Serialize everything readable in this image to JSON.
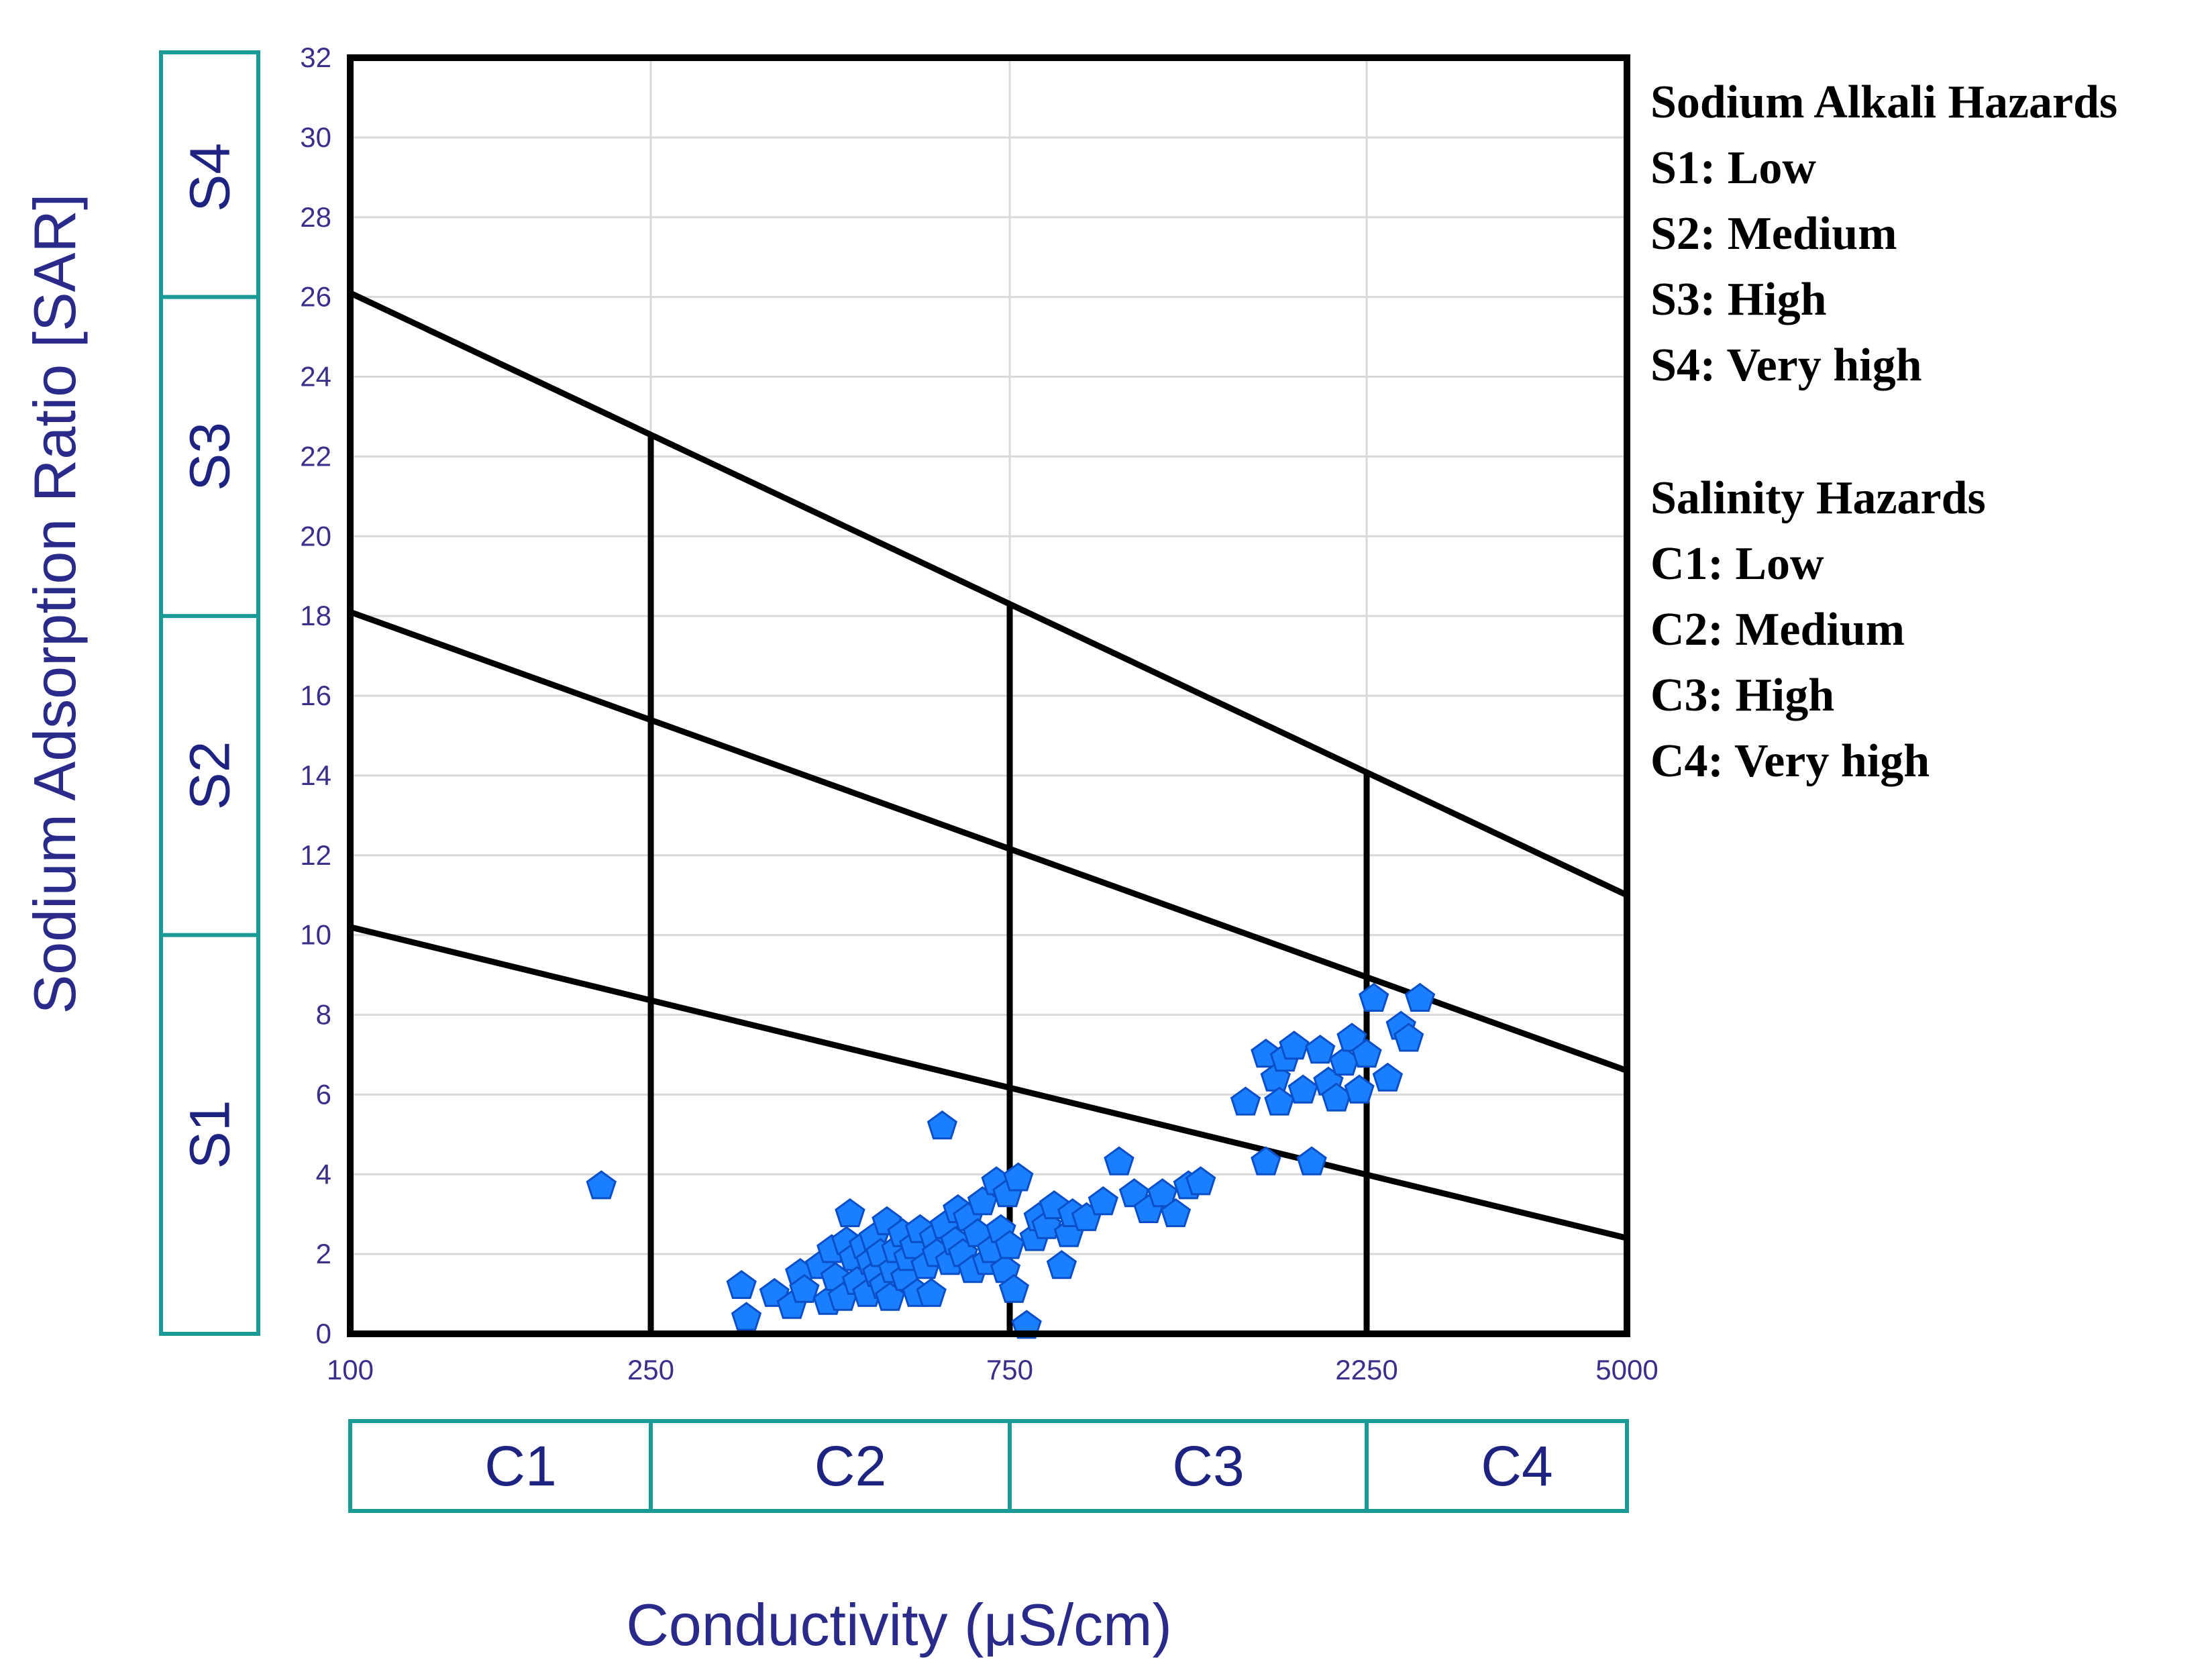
{
  "chart_data": {
    "type": "scatter",
    "title": "",
    "xlabel": "Conductivity (μS/cm)",
    "ylabel": "Sodium Adsorption Ratio [SAR]",
    "x_ticks": [
      "100",
      "250",
      "750",
      "2250",
      "5000"
    ],
    "y_ticks": [
      0,
      2,
      4,
      6,
      8,
      10,
      12,
      14,
      16,
      18,
      20,
      22,
      24,
      26,
      28,
      30,
      32
    ],
    "ylim": [
      0,
      32
    ],
    "grid": true,
    "salinity_classes": [
      "C1",
      "C2",
      "C3",
      "C4"
    ],
    "sodium_classes": [
      {
        "label": "S1",
        "from": 0,
        "to": 10
      },
      {
        "label": "S2",
        "from": 10,
        "to": 18
      },
      {
        "label": "S3",
        "from": 18,
        "to": 26
      },
      {
        "label": "S4",
        "from": 26,
        "to": 32
      }
    ],
    "boundary_lines": [
      {
        "from": [
          100,
          10.2
        ],
        "to": [
          5000,
          2.4
        ]
      },
      {
        "from": [
          100,
          18.1
        ],
        "to": [
          5000,
          6.6
        ]
      },
      {
        "from": [
          100,
          26.1
        ],
        "to": [
          5000,
          11.0
        ]
      }
    ],
    "vertical_dividers": [
      {
        "x": 250,
        "top": 22.5
      },
      {
        "x": 750,
        "top": 18.3
      },
      {
        "x": 2250,
        "top": 14.1
      }
    ],
    "marker_color": "#1a7fff",
    "points": [
      [
        215,
        3.7
      ],
      [
        330,
        1.2
      ],
      [
        335,
        0.4
      ],
      [
        365,
        1.0
      ],
      [
        385,
        0.7
      ],
      [
        395,
        1.5
      ],
      [
        400,
        1.1
      ],
      [
        420,
        1.7
      ],
      [
        430,
        0.8
      ],
      [
        435,
        2.1
      ],
      [
        440,
        1.4
      ],
      [
        450,
        0.9
      ],
      [
        455,
        2.3
      ],
      [
        460,
        3.0
      ],
      [
        465,
        1.9
      ],
      [
        470,
        1.3
      ],
      [
        480,
        2.2
      ],
      [
        485,
        1.0
      ],
      [
        490,
        1.8
      ],
      [
        495,
        2.4
      ],
      [
        500,
        1.5
      ],
      [
        505,
        2.0
      ],
      [
        510,
        1.2
      ],
      [
        515,
        2.8
      ],
      [
        520,
        0.9
      ],
      [
        525,
        1.6
      ],
      [
        530,
        2.1
      ],
      [
        540,
        2.5
      ],
      [
        545,
        1.4
      ],
      [
        550,
        1.9
      ],
      [
        560,
        2.2
      ],
      [
        565,
        1.0
      ],
      [
        570,
        2.6
      ],
      [
        580,
        1.7
      ],
      [
        590,
        1.0
      ],
      [
        595,
        2.4
      ],
      [
        600,
        2.0
      ],
      [
        610,
        5.2
      ],
      [
        615,
        2.7
      ],
      [
        625,
        1.8
      ],
      [
        635,
        2.3
      ],
      [
        640,
        3.1
      ],
      [
        650,
        2.0
      ],
      [
        660,
        2.9
      ],
      [
        670,
        1.6
      ],
      [
        680,
        2.5
      ],
      [
        690,
        3.3
      ],
      [
        700,
        1.8
      ],
      [
        710,
        2.1
      ],
      [
        720,
        3.8
      ],
      [
        730,
        2.6
      ],
      [
        740,
        1.6
      ],
      [
        745,
        3.5
      ],
      [
        750,
        2.2
      ],
      [
        760,
        1.1
      ],
      [
        770,
        3.9
      ],
      [
        790,
        0.2
      ],
      [
        810,
        2.4
      ],
      [
        820,
        2.9
      ],
      [
        840,
        2.7
      ],
      [
        860,
        3.2
      ],
      [
        880,
        1.7
      ],
      [
        900,
        2.5
      ],
      [
        910,
        3.0
      ],
      [
        950,
        2.9
      ],
      [
        1000,
        3.3
      ],
      [
        1050,
        4.3
      ],
      [
        1100,
        3.5
      ],
      [
        1150,
        3.1
      ],
      [
        1200,
        3.5
      ],
      [
        1250,
        3.0
      ],
      [
        1300,
        3.7
      ],
      [
        1350,
        3.8
      ],
      [
        1550,
        5.8
      ],
      [
        1650,
        4.3
      ],
      [
        1650,
        7.0
      ],
      [
        1700,
        6.4
      ],
      [
        1720,
        5.8
      ],
      [
        1750,
        6.9
      ],
      [
        1800,
        7.2
      ],
      [
        1850,
        6.1
      ],
      [
        1900,
        4.3
      ],
      [
        1950,
        7.1
      ],
      [
        2000,
        6.3
      ],
      [
        2050,
        5.9
      ],
      [
        2100,
        6.8
      ],
      [
        2150,
        7.4
      ],
      [
        2200,
        6.1
      ],
      [
        2250,
        7.0
      ],
      [
        2300,
        8.4
      ],
      [
        2400,
        6.4
      ],
      [
        2500,
        7.7
      ],
      [
        2560,
        7.4
      ],
      [
        2650,
        8.4
      ]
    ]
  },
  "legend": {
    "sodium_title": "Sodium Alkali Hazards",
    "sodium_items": [
      "S1: Low",
      "S2: Medium",
      "S3: High",
      "S4: Very high"
    ],
    "salinity_title": "Salinity Hazards",
    "salinity_items": [
      "C1: Low",
      "C2: Medium",
      "C3: High",
      "C4: Very high"
    ]
  }
}
